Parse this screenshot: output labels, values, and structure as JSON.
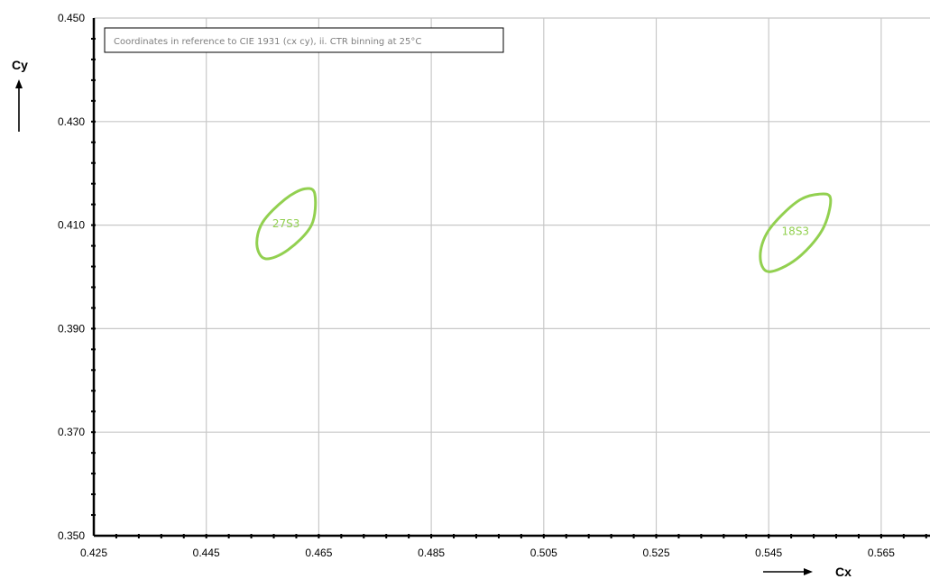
{
  "chart_data": {
    "type": "scatter",
    "title": "",
    "xlabel": "Cx",
    "ylabel": "Cy",
    "xlim": [
      0.425,
      0.575
    ],
    "ylim": [
      0.35,
      0.45
    ],
    "x_ticks": [
      "0.425",
      "0.445",
      "0.465",
      "0.485",
      "0.505",
      "0.525",
      "0.545",
      "0.565"
    ],
    "y_ticks": [
      "0.350",
      "0.370",
      "0.390",
      "0.410",
      "0.430",
      "0.450"
    ],
    "x_tick_values": [
      0.425,
      0.445,
      0.465,
      0.485,
      0.505,
      0.525,
      0.545,
      0.565
    ],
    "y_tick_values": [
      0.35,
      0.37,
      0.39,
      0.41,
      0.43,
      0.45
    ],
    "minor_tick_step_x": 0.004,
    "minor_tick_step_y": 0.004,
    "grid": true,
    "annotation": "Coordinates in reference to CIE 1931 (cx cy), ii. CTR binning at 25°C",
    "bins": [
      {
        "name": "27S3",
        "points": [
          [
            0.4555,
            0.4035
          ],
          [
            0.454,
            0.4062
          ],
          [
            0.455,
            0.4105
          ],
          [
            0.459,
            0.415
          ],
          [
            0.4625,
            0.417
          ],
          [
            0.4643,
            0.416
          ],
          [
            0.4637,
            0.41
          ],
          [
            0.4595,
            0.4052
          ]
        ]
      },
      {
        "name": "18S3",
        "points": [
          [
            0.545,
            0.401
          ],
          [
            0.5435,
            0.404
          ],
          [
            0.545,
            0.409
          ],
          [
            0.55,
            0.4145
          ],
          [
            0.554,
            0.416
          ],
          [
            0.556,
            0.415
          ],
          [
            0.5545,
            0.409
          ],
          [
            0.55,
            0.4035
          ]
        ]
      }
    ],
    "bin_color": "#92d050",
    "grid_color": "#c8c8c8",
    "axis_color": "#000000"
  }
}
